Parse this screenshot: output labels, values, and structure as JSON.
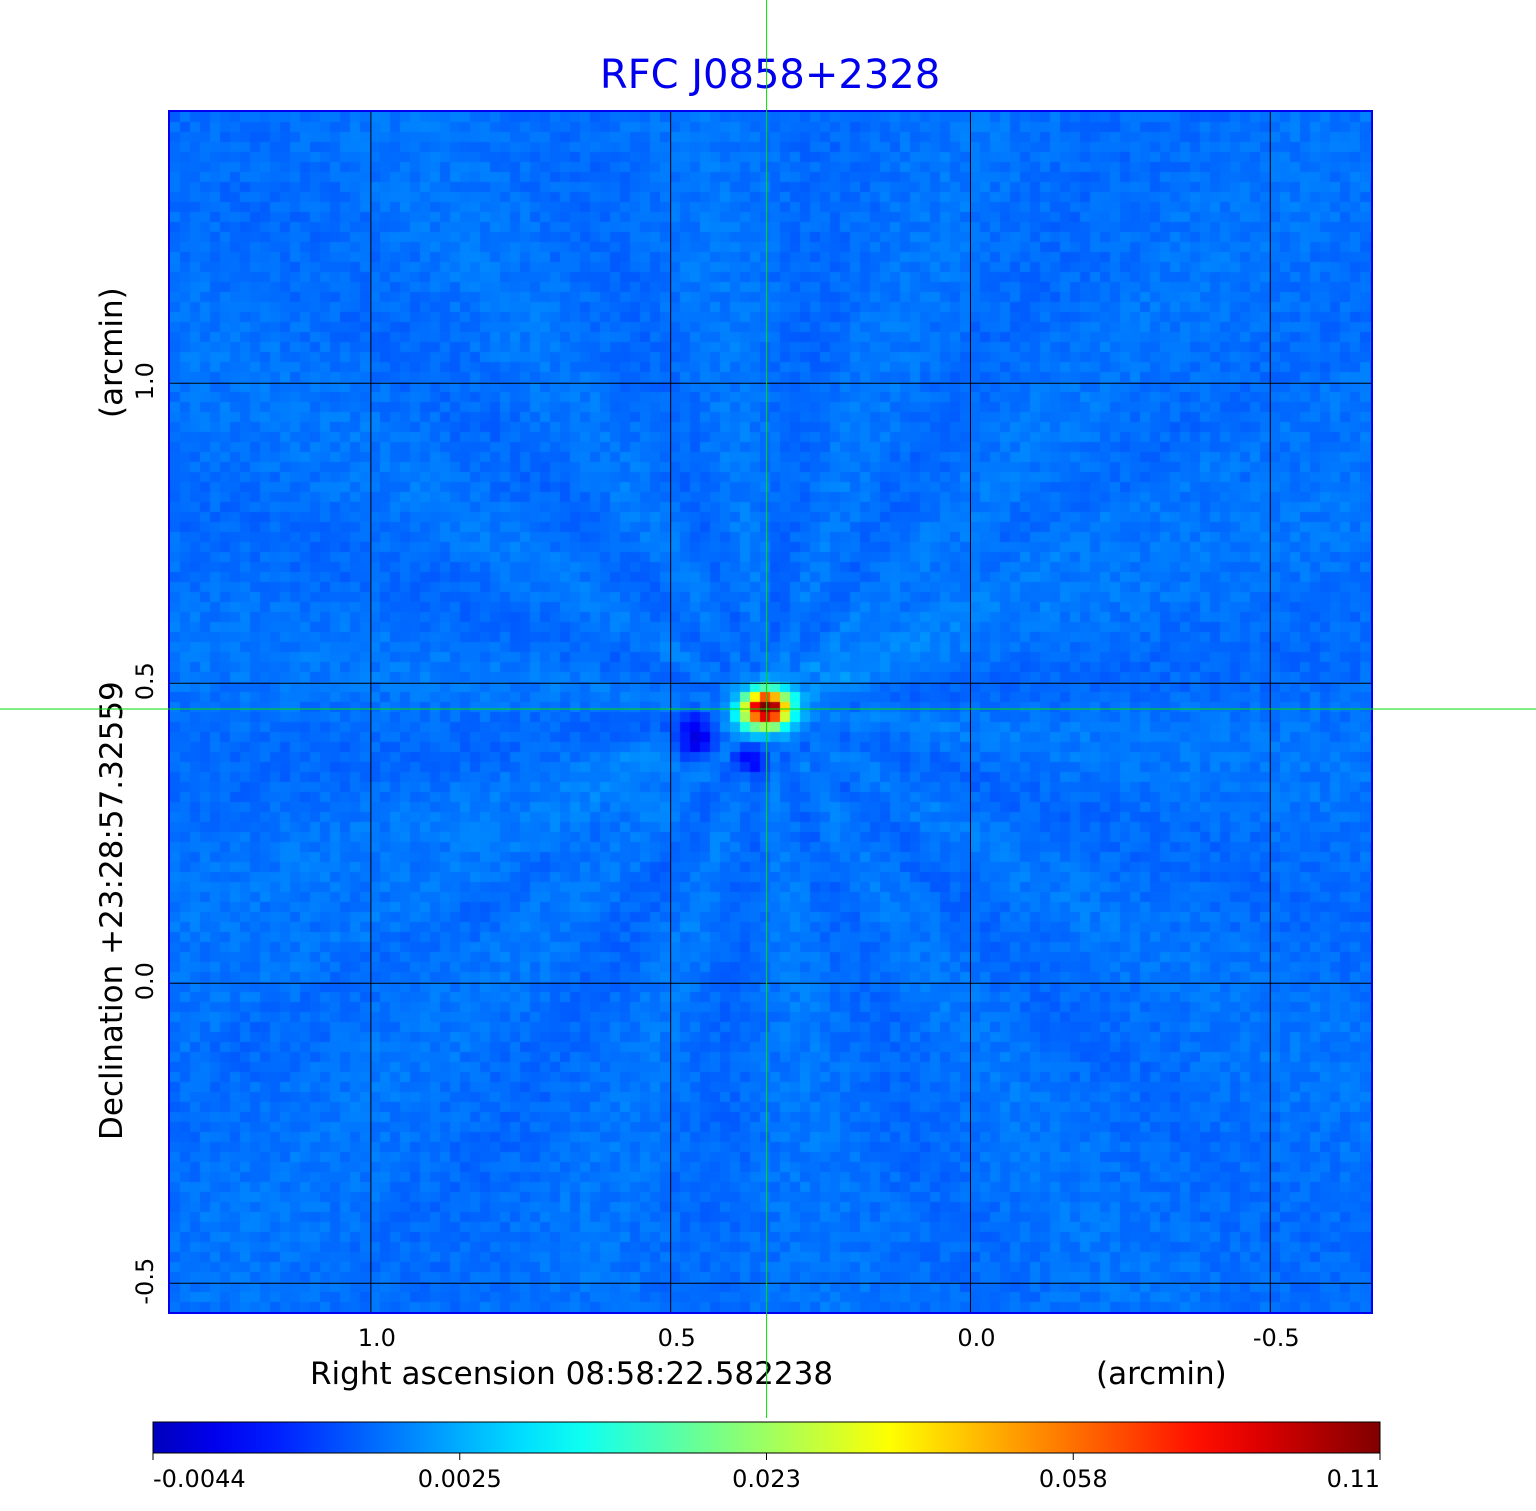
{
  "chart_data": {
    "type": "heatmap",
    "title": "RFC J0858+2328",
    "xlabel": "Right ascension  08:58:22.582238",
    "xunit": "(arcmin)",
    "ylabel": "Declination  +23:28:57.32559",
    "yunit": "(arcmin)",
    "x_ticks": [
      1.0,
      0.5,
      0.0,
      -0.5
    ],
    "x_tick_labels": [
      "1.0",
      "0.5",
      "0.0",
      "-0.5"
    ],
    "y_ticks": [
      1.0,
      0.5,
      0.0,
      -0.5
    ],
    "y_tick_labels": [
      "1.0",
      "0.5",
      "0.0",
      "-0.5"
    ],
    "xlim": [
      1.335,
      -0.668
    ],
    "ylim": [
      -0.548,
      1.452
    ],
    "grid": true,
    "crosshair": {
      "x": 0.34,
      "y": 0.457
    },
    "peak": {
      "x": 0.34,
      "y": 0.457,
      "value": 0.11
    },
    "colormap": "jet",
    "colorbar": {
      "placement": "bottom",
      "range": [
        -0.0044,
        0.11
      ],
      "ticks": [
        "-0.0044",
        "0.0025",
        "0.023",
        "0.058",
        "0.11"
      ]
    },
    "colors": {
      "title": "#0000ee",
      "frame": "#0000ee",
      "crosshair": "#00dd00",
      "grid": "#000000"
    }
  }
}
